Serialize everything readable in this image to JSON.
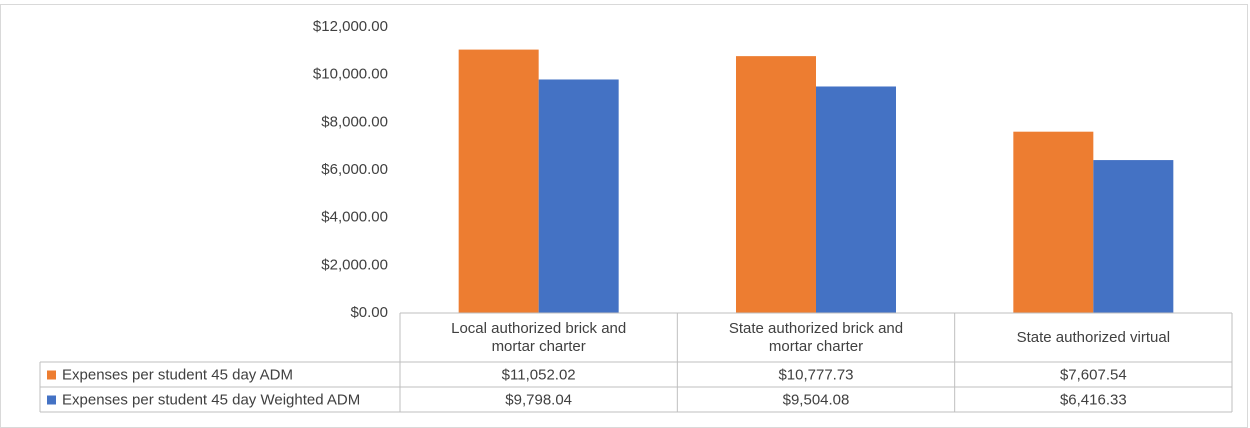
{
  "chart_data": {
    "type": "bar",
    "categories": [
      "Local authorized brick and mortar charter",
      "State authorized brick and mortar charter",
      "State authorized virtual"
    ],
    "series": [
      {
        "name": "Expenses per student 45 day ADM",
        "color": "#ED7D31",
        "values": [
          11052.02,
          10777.73,
          7607.54
        ],
        "value_labels": [
          "$11,052.02",
          "$10,777.73",
          "$7,607.54"
        ]
      },
      {
        "name": "Expenses per student 45 day Weighted ADM",
        "color": "#4472C4",
        "values": [
          9798.04,
          9504.08,
          6416.33
        ],
        "value_labels": [
          "$9,798.04",
          "$9,504.08",
          "$6,416.33"
        ]
      }
    ],
    "ylim": [
      0,
      12000
    ],
    "yticks": [
      {
        "value": 0,
        "label": "$0.00"
      },
      {
        "value": 2000,
        "label": "$2,000.00"
      },
      {
        "value": 4000,
        "label": "$4,000.00"
      },
      {
        "value": 6000,
        "label": "$6,000.00"
      },
      {
        "value": 8000,
        "label": "$8,000.00"
      },
      {
        "value": 10000,
        "label": "$10,000.00"
      },
      {
        "value": 12000,
        "label": "$12,000.00"
      }
    ],
    "grid": false
  }
}
